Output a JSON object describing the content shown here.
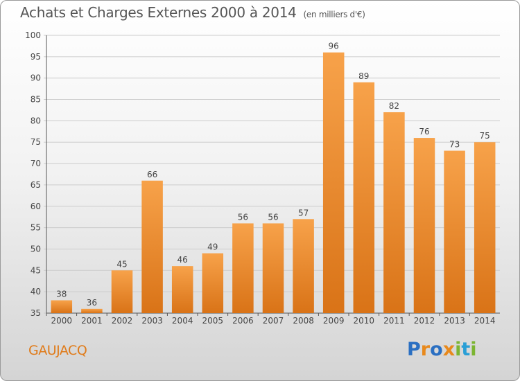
{
  "header": {
    "title": "Achats et Charges Externes 2000 à 2014",
    "unit": "(en milliers d'€)"
  },
  "footer": {
    "commune": "GAUJACQ",
    "logo": {
      "letters": [
        "P",
        "r",
        "o",
        "x",
        "i",
        "t",
        "i"
      ],
      "colors": [
        "#2a6fc2",
        "#e8891c",
        "#2a6fc2",
        "#e8891c",
        "#7cb531",
        "#2a9fd6",
        "#7cb531"
      ]
    }
  },
  "colors": {
    "bar_top": "#f7a24a",
    "bar_bottom": "#d97317",
    "grid": "#cccccc",
    "axis": "#555555"
  },
  "chart_data": {
    "type": "bar",
    "title": "Achats et Charges Externes 2000 à 2014",
    "subtitle": "(en milliers d'€)",
    "xlabel": "",
    "ylabel": "",
    "categories": [
      "2000",
      "2001",
      "2002",
      "2003",
      "2004",
      "2005",
      "2006",
      "2007",
      "2008",
      "2009",
      "2010",
      "2011",
      "2012",
      "2013",
      "2014"
    ],
    "values": [
      38,
      36,
      45,
      66,
      46,
      49,
      56,
      56,
      57,
      96,
      89,
      82,
      76,
      73,
      75
    ],
    "ylim": [
      35,
      100
    ],
    "yticks": [
      35,
      40,
      45,
      50,
      55,
      60,
      65,
      70,
      75,
      80,
      85,
      90,
      95,
      100
    ],
    "grid": true,
    "data_labels": true
  }
}
